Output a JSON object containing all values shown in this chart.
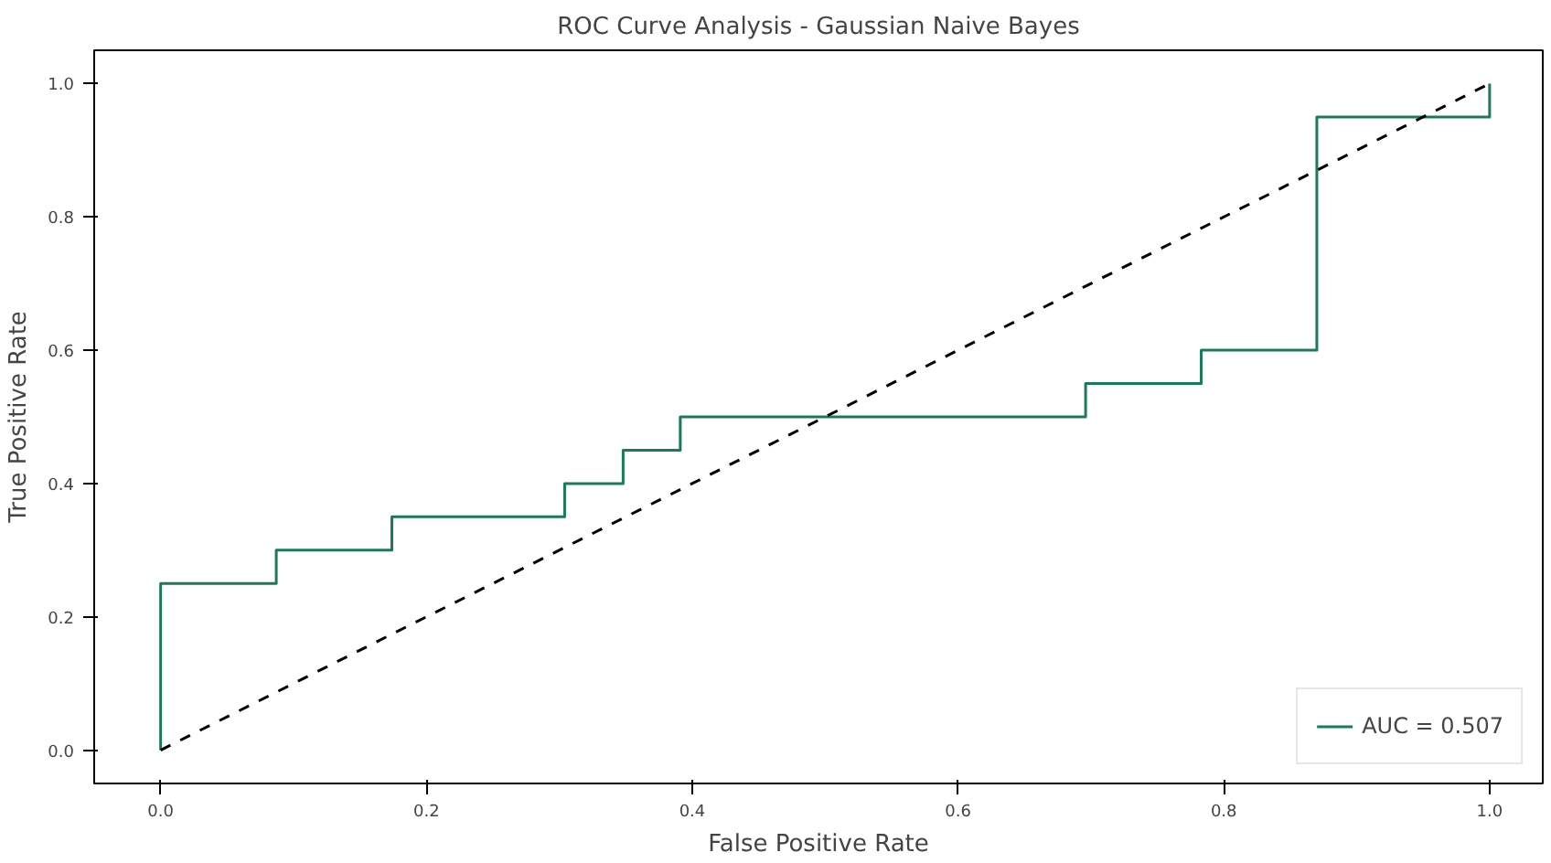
{
  "chart_data": {
    "type": "line",
    "title": "ROC Curve Analysis - Gaussian Naive Bayes",
    "xlabel": "False Positive Rate",
    "ylabel": "True Positive Rate",
    "xlim": [
      -0.05,
      1.04
    ],
    "ylim": [
      -0.05,
      1.05
    ],
    "xticks": [
      {
        "value": 0,
        "label": "0.0"
      },
      0.2,
      0.4,
      0.6,
      0.8,
      {
        "value": 1,
        "label": "1.0"
      }
    ],
    "yticks": [
      {
        "value": 0,
        "label": "0.0"
      },
      0.2,
      0.4,
      0.6,
      0.8,
      {
        "value": 1,
        "label": "1.0"
      }
    ],
    "grid": false,
    "legend": "bottom right",
    "marker": "none",
    "series": [
      {
        "name": "AUC = 0.507",
        "color": "#1a7a5a",
        "line_style": "solid",
        "x": [
          0,
          0,
          0.087,
          0.087,
          0.174,
          0.174,
          0.304,
          0.304,
          0.348,
          0.348,
          0.391,
          0.391,
          0.696,
          0.696,
          0.783,
          0.783,
          0.87,
          0.87,
          1,
          1
        ],
        "values": [
          0,
          0.25,
          0.25,
          0.3,
          0.3,
          0.35,
          0.35,
          0.4,
          0.4,
          0.45,
          0.45,
          0.5,
          0.5,
          0.55,
          0.55,
          0.6,
          0.6,
          0.95,
          0.95,
          1.0
        ]
      },
      {
        "color": "#000000",
        "line_style": "dashed",
        "x": [
          0,
          1
        ],
        "values": [
          0,
          1
        ]
      }
    ]
  }
}
